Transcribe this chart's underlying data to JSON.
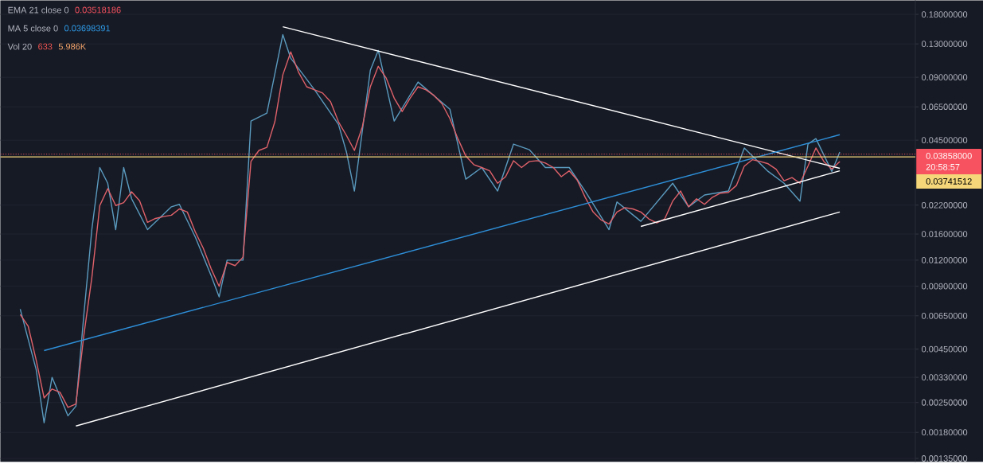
{
  "chart_data": {
    "type": "line",
    "log": true,
    "grid": "y",
    "marker": "none",
    "line_style": "solid",
    "categories": [
      null,
      null,
      null,
      null,
      null,
      null,
      null,
      null,
      null,
      null,
      null,
      null,
      null,
      null,
      null,
      null,
      null,
      null,
      null,
      null,
      null,
      null,
      null,
      null,
      null,
      null,
      null,
      null,
      null,
      null,
      null,
      null,
      null,
      null,
      null,
      null,
      null,
      null,
      null,
      null,
      null,
      null,
      null,
      null,
      null,
      null,
      null,
      null,
      null,
      null,
      null,
      null,
      null,
      null,
      null,
      null,
      null,
      null,
      null,
      null,
      null,
      null,
      null,
      null,
      null,
      null,
      null,
      null,
      null,
      null,
      null,
      null,
      null,
      null,
      null,
      null,
      null,
      null,
      null,
      null,
      null,
      null,
      null,
      null,
      null,
      null,
      null,
      null,
      null,
      null,
      null,
      null,
      null,
      null,
      null,
      null,
      null,
      null,
      null,
      null,
      null,
      null,
      null,
      null
    ],
    "ylim": [
      0.0013,
      0.21
    ],
    "yticks": [
      {
        "value": 0.18,
        "label": "0.18000000"
      },
      {
        "value": 0.13,
        "label": "0.13000000"
      },
      {
        "value": 0.09,
        "label": "0.09000000"
      },
      {
        "value": 0.065,
        "label": "0.06500000"
      },
      {
        "value": 0.045,
        "label": "0.04500000"
      },
      {
        "value": 0.022,
        "label": "0.02200000"
      },
      {
        "value": 0.016,
        "label": "0.01600000"
      },
      {
        "value": 0.012,
        "label": "0.01200000"
      },
      {
        "value": 0.009,
        "label": "0.00900000"
      },
      {
        "value": 0.0065,
        "label": "0.00650000"
      },
      {
        "value": 0.0045,
        "label": "0.00450000"
      },
      {
        "value": 0.0033,
        "label": "0.00330000"
      },
      {
        "value": 0.0025,
        "label": "0.00250000"
      },
      {
        "value": 0.0018,
        "label": "0.00180000"
      },
      {
        "value": 0.00135,
        "label": "0.00135000"
      }
    ],
    "series": [
      {
        "color": "#5b9bbf",
        "values": [
          0.007,
          null,
          0.0036,
          0.002,
          0.0033,
          null,
          0.00216,
          0.0024,
          0.0066,
          0.0168,
          0.0333,
          0.028,
          0.0168,
          0.0333,
          0.0236,
          null,
          0.0168,
          null,
          null,
          0.0216,
          0.0222,
          null,
          0.0155,
          null,
          0.0101,
          0.008,
          0.012,
          null,
          0.012,
          0.0556,
          null,
          0.0606,
          null,
          0.144,
          0.111,
          null,
          null,
          0.0784,
          null,
          null,
          0.0535,
          0.0395,
          0.0257,
          null,
          0.0973,
          0.121,
          null,
          0.0556,
          null,
          null,
          0.0854,
          null,
          null,
          null,
          0.0633,
          null,
          0.0293,
          null,
          0.0333,
          null,
          0.0257,
          null,
          0.0431,
          null,
          0.0405,
          null,
          0.0333,
          null,
          null,
          0.0333,
          null,
          0.0257,
          null,
          null,
          0.0168,
          0.0228,
          null,
          null,
          0.0184,
          null,
          null,
          null,
          0.028,
          null,
          0.0216,
          null,
          0.0246,
          null,
          null,
          0.0257,
          null,
          0.0413,
          null,
          null,
          0.0319,
          null,
          0.028,
          null,
          0.023,
          0.0431,
          0.0458,
          null,
          0.0319,
          0.0395
        ]
      },
      {
        "color": "#e0626a",
        "values": [
          0.0066,
          0.0058,
          0.004,
          0.00263,
          0.0029,
          0.0028,
          0.00237,
          0.00246,
          0.00526,
          0.0099,
          0.0219,
          0.0264,
          0.0219,
          0.0226,
          0.0255,
          0.0231,
          0.0182,
          0.019,
          0.0194,
          0.0197,
          0.0211,
          0.0204,
          0.0164,
          0.0137,
          0.0109,
          0.009,
          0.0117,
          0.0113,
          0.0124,
          0.0356,
          0.0402,
          0.0416,
          0.0551,
          0.0924,
          0.119,
          0.0948,
          0.0811,
          0.0784,
          0.0757,
          0.0688,
          0.0551,
          0.0474,
          0.0402,
          0.0522,
          0.0811,
          0.1016,
          0.0892,
          0.0715,
          0.0617,
          0.0715,
          0.0811,
          0.0784,
          0.0737,
          0.0673,
          0.0571,
          0.0458,
          0.0378,
          0.0344,
          0.0333,
          0.0321,
          0.028,
          0.0301,
          0.0359,
          0.0333,
          0.0356,
          0.0359,
          0.035,
          0.0333,
          0.0301,
          0.0321,
          0.029,
          0.024,
          0.0204,
          0.0187,
          0.0179,
          0.0204,
          0.0214,
          0.0211,
          0.0204,
          0.0189,
          0.0181,
          0.0189,
          0.023,
          0.0257,
          0.0216,
          0.0236,
          0.0222,
          0.024,
          0.0251,
          0.0253,
          0.0273,
          0.0338,
          0.0363,
          0.0356,
          0.0347,
          0.0327,
          0.0288,
          0.0298,
          0.028,
          0.0338,
          0.0413,
          0.0356,
          0.0327,
          0.0356
        ]
      },
      {
        "color": "#ffffff",
        "values": [
          null,
          null,
          null,
          null,
          null,
          null,
          null,
          null,
          null,
          null,
          null,
          null,
          null,
          null,
          null,
          null,
          null,
          null,
          null,
          null,
          null,
          null,
          null,
          null,
          null,
          null,
          null,
          null,
          null,
          null,
          null,
          null,
          null,
          0.157,
          null,
          null,
          null,
          null,
          null,
          null,
          null,
          null,
          null,
          null,
          null,
          null,
          null,
          null,
          null,
          null,
          null,
          null,
          null,
          null,
          null,
          null,
          null,
          null,
          null,
          null,
          null,
          null,
          null,
          null,
          null,
          null,
          null,
          null,
          null,
          null,
          null,
          null,
          null,
          null,
          null,
          null,
          null,
          null,
          null,
          null,
          null,
          null,
          null,
          null,
          null,
          null,
          null,
          null,
          null,
          null,
          null,
          null,
          null,
          null,
          null,
          null,
          null,
          null,
          null,
          null,
          null,
          null,
          null,
          0.033
        ]
      },
      {
        "color": "#ffffff",
        "values": [
          null,
          null,
          null,
          null,
          null,
          null,
          null,
          0.00193,
          null,
          null,
          null,
          null,
          null,
          null,
          null,
          null,
          null,
          null,
          null,
          null,
          null,
          null,
          null,
          null,
          null,
          null,
          null,
          null,
          null,
          null,
          null,
          null,
          null,
          null,
          null,
          null,
          null,
          null,
          null,
          null,
          null,
          null,
          null,
          null,
          null,
          null,
          null,
          null,
          null,
          null,
          null,
          null,
          null,
          null,
          null,
          null,
          null,
          null,
          null,
          null,
          null,
          null,
          null,
          null,
          null,
          null,
          null,
          null,
          null,
          null,
          null,
          null,
          null,
          null,
          null,
          null,
          null,
          null,
          null,
          null,
          null,
          null,
          null,
          null,
          null,
          null,
          null,
          null,
          null,
          null,
          null,
          null,
          null,
          null,
          null,
          null,
          null,
          null,
          null,
          null,
          null,
          null,
          null,
          0.0204
        ]
      },
      {
        "color": "#ffffff",
        "values": [
          null,
          null,
          null,
          null,
          null,
          null,
          null,
          null,
          null,
          null,
          null,
          null,
          null,
          null,
          null,
          null,
          null,
          null,
          null,
          null,
          null,
          null,
          null,
          null,
          null,
          null,
          null,
          null,
          null,
          null,
          null,
          null,
          null,
          null,
          null,
          null,
          null,
          null,
          null,
          null,
          null,
          null,
          null,
          null,
          null,
          null,
          null,
          null,
          null,
          null,
          null,
          null,
          null,
          null,
          null,
          null,
          null,
          null,
          null,
          null,
          null,
          null,
          null,
          null,
          null,
          null,
          null,
          null,
          null,
          null,
          null,
          null,
          null,
          null,
          null,
          null,
          null,
          null,
          0.0174,
          null,
          null,
          null,
          null,
          null,
          null,
          null,
          null,
          null,
          null,
          null,
          null,
          null,
          null,
          null,
          null,
          null,
          null,
          null,
          null,
          null,
          null,
          null,
          null,
          0.0321
        ]
      },
      {
        "color": "#2e8fd8",
        "values": [
          null,
          null,
          null,
          0.00443,
          null,
          null,
          null,
          null,
          null,
          null,
          null,
          null,
          null,
          null,
          null,
          null,
          null,
          null,
          null,
          null,
          null,
          null,
          null,
          null,
          null,
          null,
          null,
          null,
          null,
          null,
          null,
          null,
          null,
          null,
          null,
          null,
          null,
          null,
          null,
          null,
          null,
          null,
          null,
          null,
          null,
          null,
          null,
          null,
          null,
          null,
          null,
          null,
          null,
          null,
          null,
          null,
          null,
          null,
          null,
          null,
          null,
          null,
          null,
          null,
          null,
          null,
          null,
          null,
          null,
          null,
          null,
          null,
          null,
          null,
          null,
          null,
          null,
          null,
          null,
          null,
          null,
          null,
          null,
          null,
          null,
          null,
          null,
          null,
          null,
          null,
          null,
          null,
          null,
          null,
          null,
          null,
          null,
          null,
          null,
          null,
          null,
          null,
          null,
          0.0478
        ]
      }
    ],
    "ref_lines": [
      {
        "axis": "y",
        "value": 0.03858,
        "label": "0.03858000",
        "color": "#f7525f",
        "line_style": "dotted"
      },
      {
        "axis": "y",
        "value": 0.03741512,
        "label": "0.03741512",
        "color": "#f5d77a",
        "line_style": "solid"
      }
    ],
    "annotations": [
      "EMA 21 close 0",
      "0.03518186",
      "MA 5 close 0",
      "0.03698391",
      "Vol 20",
      "633",
      "5.986K",
      "20:58:57"
    ]
  }
}
